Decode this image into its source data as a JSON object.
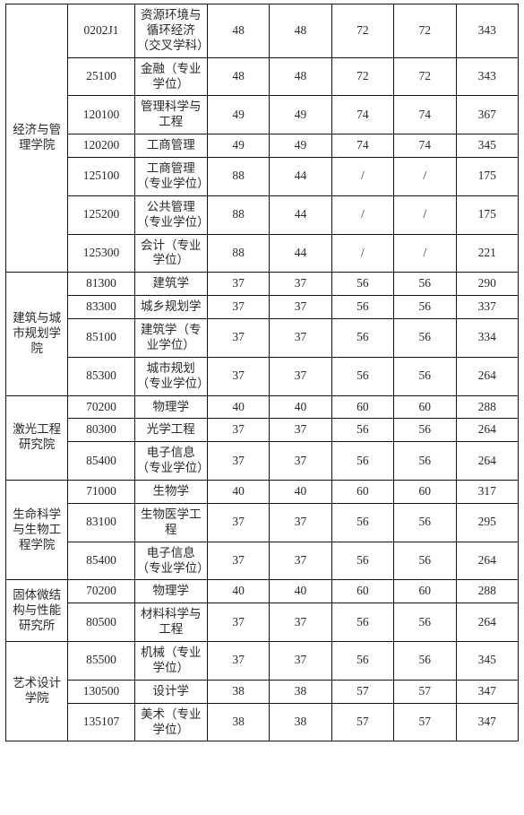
{
  "colors": {
    "text": "#2a2a2a",
    "border": "#111111",
    "background": "#ffffff"
  },
  "font": {
    "family": "SimSun",
    "size_pt": 10
  },
  "table": {
    "type": "table",
    "column_roles": [
      "school",
      "code",
      "major",
      "score1",
      "score2",
      "score3",
      "score4",
      "total"
    ],
    "groups": [
      {
        "school": "经济与管理学院",
        "rows": [
          {
            "code": "0202J1",
            "major": "资源环境与循环经济（交叉学科）",
            "c": [
              "48",
              "48",
              "72",
              "72",
              "343"
            ]
          },
          {
            "code": "25100",
            "major": "金融（专业学位）",
            "c": [
              "48",
              "48",
              "72",
              "72",
              "343"
            ]
          },
          {
            "code": "120100",
            "major": "管理科学与工程",
            "c": [
              "49",
              "49",
              "74",
              "74",
              "367"
            ]
          },
          {
            "code": "120200",
            "major": "工商管理",
            "c": [
              "49",
              "49",
              "74",
              "74",
              "345"
            ]
          },
          {
            "code": "125100",
            "major": "工商管理（专业学位）",
            "c": [
              "88",
              "44",
              "/",
              "/",
              "175"
            ]
          },
          {
            "code": "125200",
            "major": "公共管理（专业学位）",
            "c": [
              "88",
              "44",
              "/",
              "/",
              "175"
            ]
          },
          {
            "code": "125300",
            "major": "会计（专业学位）",
            "c": [
              "88",
              "44",
              "/",
              "/",
              "221"
            ]
          }
        ]
      },
      {
        "school": "建筑与城市规划学院",
        "rows": [
          {
            "code": "81300",
            "major": "建筑学",
            "c": [
              "37",
              "37",
              "56",
              "56",
              "290"
            ]
          },
          {
            "code": "83300",
            "major": "城乡规划学",
            "c": [
              "37",
              "37",
              "56",
              "56",
              "337"
            ]
          },
          {
            "code": "85100",
            "major": "建筑学（专业学位）",
            "c": [
              "37",
              "37",
              "56",
              "56",
              "334"
            ]
          },
          {
            "code": "85300",
            "major": "城市规划（专业学位）",
            "c": [
              "37",
              "37",
              "56",
              "56",
              "264"
            ]
          }
        ]
      },
      {
        "school": "激光工程研究院",
        "rows": [
          {
            "code": "70200",
            "major": "物理学",
            "c": [
              "40",
              "40",
              "60",
              "60",
              "288"
            ]
          },
          {
            "code": "80300",
            "major": "光学工程",
            "c": [
              "37",
              "37",
              "56",
              "56",
              "264"
            ]
          },
          {
            "code": "85400",
            "major": "电子信息（专业学位）",
            "c": [
              "37",
              "37",
              "56",
              "56",
              "264"
            ]
          }
        ]
      },
      {
        "school": "生命科学与生物工程学院",
        "rows": [
          {
            "code": "71000",
            "major": "生物学",
            "c": [
              "40",
              "40",
              "60",
              "60",
              "317"
            ]
          },
          {
            "code": "83100",
            "major": "生物医学工程",
            "c": [
              "37",
              "37",
              "56",
              "56",
              "295"
            ]
          },
          {
            "code": "85400",
            "major": "电子信息（专业学位）",
            "c": [
              "37",
              "37",
              "56",
              "56",
              "264"
            ]
          }
        ]
      },
      {
        "school": "固体微结构与性能研究所",
        "rows": [
          {
            "code": "70200",
            "major": "物理学",
            "c": [
              "40",
              "40",
              "60",
              "60",
              "288"
            ]
          },
          {
            "code": "80500",
            "major": "材料科学与工程",
            "c": [
              "37",
              "37",
              "56",
              "56",
              "264"
            ]
          }
        ]
      },
      {
        "school": "艺术设计学院",
        "rows": [
          {
            "code": "85500",
            "major": "机械（专业学位）",
            "c": [
              "37",
              "37",
              "56",
              "56",
              "345"
            ]
          },
          {
            "code": "130500",
            "major": "设计学",
            "c": [
              "38",
              "38",
              "57",
              "57",
              "347"
            ]
          },
          {
            "code": "135107",
            "major": "美术（专业学位）",
            "c": [
              "38",
              "38",
              "57",
              "57",
              "347"
            ]
          }
        ]
      }
    ]
  }
}
